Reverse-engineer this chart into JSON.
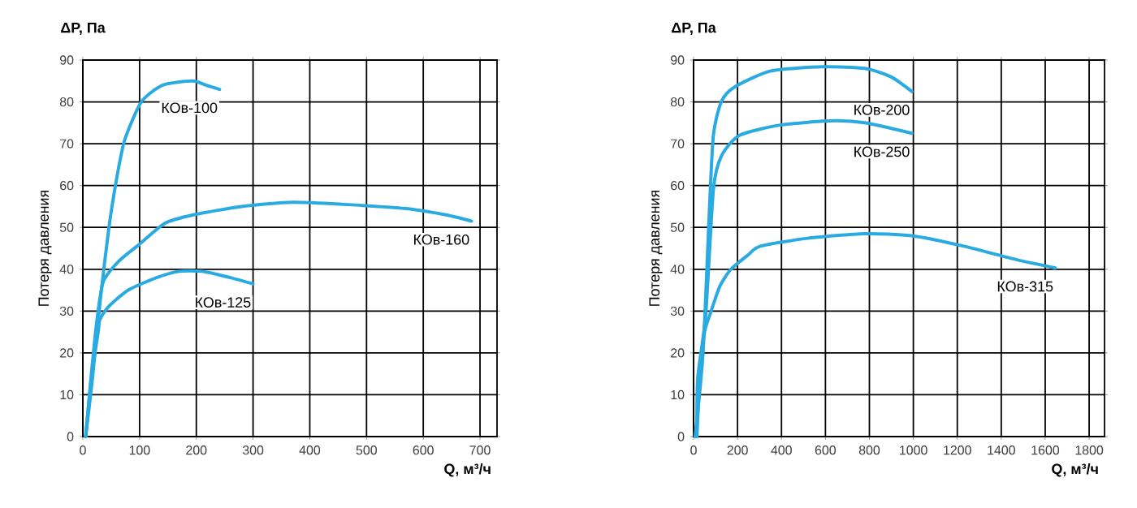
{
  "chart_data": [
    {
      "type": "line",
      "title": "ΔP, Па",
      "ylabel": "Потеря давления",
      "xlabel": "Q, м³/ч",
      "xlim": [
        0,
        730
      ],
      "ylim": [
        0,
        90
      ],
      "xticks": [
        0,
        100,
        200,
        300,
        400,
        500,
        600,
        700
      ],
      "yticks": [
        0,
        10,
        20,
        30,
        40,
        50,
        60,
        70,
        80,
        90
      ],
      "series": [
        {
          "name": "КОв-100",
          "color": "#29abe2",
          "x": [
            5,
            17,
            31,
            46,
            60,
            74,
            103,
            141,
            193,
            217,
            241
          ],
          "values": [
            0,
            14,
            33,
            50,
            62,
            71,
            80,
            84,
            85,
            84,
            83
          ]
        },
        {
          "name": "КОв-160",
          "color": "#29abe2",
          "x": [
            5,
            15,
            25,
            36,
            64,
            100,
            145,
            195,
            280,
            370,
            460,
            570,
            640,
            685
          ],
          "values": [
            0,
            15,
            28,
            37,
            42,
            46,
            51,
            53,
            55,
            56,
            55.5,
            54.5,
            53,
            51.5
          ]
        },
        {
          "name": "КОв-125",
          "color": "#29abe2",
          "x": [
            5,
            15,
            27,
            30,
            45,
            80,
            130,
            170,
            210,
            260,
            300
          ],
          "values": [
            0,
            14,
            25,
            28,
            31,
            35,
            38,
            39.5,
            39.5,
            38,
            36.5
          ]
        }
      ],
      "grid": true
    },
    {
      "type": "line",
      "title": "ΔP, Па",
      "ylabel": "Потеря давления",
      "xlabel": "Q, м³/ч",
      "xlim": [
        0,
        1870
      ],
      "ylim": [
        0,
        90
      ],
      "xticks": [
        0,
        200,
        400,
        600,
        800,
        1000,
        1200,
        1400,
        1600,
        1800
      ],
      "yticks": [
        0,
        10,
        20,
        30,
        40,
        50,
        60,
        70,
        80,
        90
      ],
      "grid": true,
      "series": [
        {
          "name": "КОв-200",
          "color": "#29abe2",
          "x": [
            7,
            43,
            71,
            90,
            126,
            185,
            352,
            589,
            779,
            898,
            993
          ],
          "values": [
            0,
            20,
            53,
            72,
            80,
            83.5,
            87.4,
            88.4,
            88,
            86,
            82.5
          ]
        },
        {
          "name": "КОв-250",
          "color": "#29abe2",
          "x": [
            15,
            19,
            55,
            90,
            126,
            209,
            399,
            637,
            779,
            993
          ],
          "values": [
            0,
            14,
            29,
            59,
            67,
            72,
            74.5,
            75.5,
            75,
            72.5
          ]
        },
        {
          "name": "КОв-315",
          "color": "#29abe2",
          "x": [
            15,
            30,
            50,
            80,
            120,
            170,
            250,
            304,
            518,
            779,
            993,
            1230,
            1468,
            1646
          ],
          "values": [
            0,
            15,
            25,
            30,
            36,
            40,
            43.5,
            45.5,
            47.4,
            48.5,
            48,
            45.5,
            42.3,
            40.3
          ]
        }
      ]
    }
  ]
}
